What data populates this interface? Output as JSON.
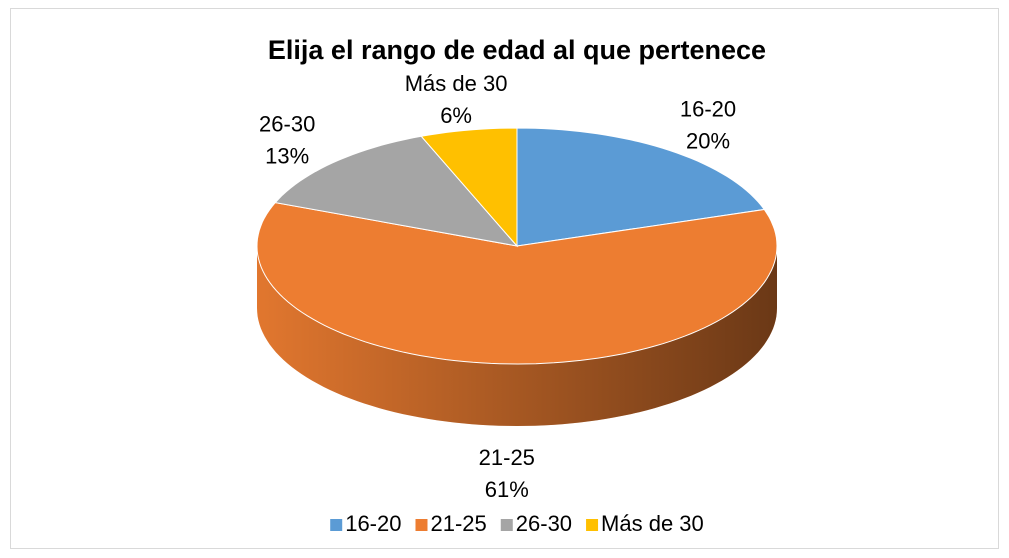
{
  "chart_data": {
    "type": "pie3d",
    "title": "Elija el rango de edad al que pertenece",
    "categories": [
      "16-20",
      "21-25",
      "26-30",
      "Más de 30"
    ],
    "values": [
      20,
      61,
      13,
      6
    ],
    "value_labels": [
      "20%",
      "61%",
      "13%",
      "6%"
    ],
    "colors": [
      "#5b9bd5",
      "#ed7d31",
      "#a5a5a5",
      "#ffc000"
    ],
    "legend": "bottom"
  }
}
